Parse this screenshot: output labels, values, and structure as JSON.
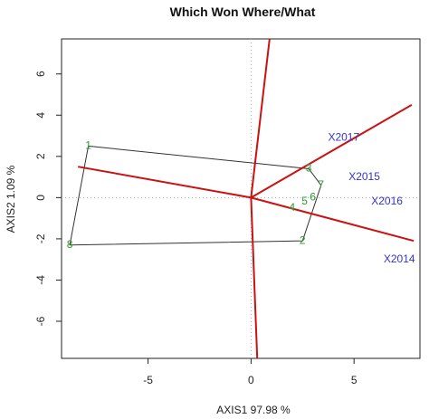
{
  "chart_data": {
    "type": "scatter",
    "title": "Which Won Where/What",
    "xlabel": "AXIS1 97.98 %",
    "ylabel": "AXIS2 1.09 %",
    "xlim": [
      -9.2,
      8.2
    ],
    "ylim": [
      -7.8,
      7.7
    ],
    "xticks": [
      -5,
      0,
      5
    ],
    "yticks": [
      6,
      4,
      2,
      0,
      -2,
      -4,
      -6
    ],
    "xtick_labels": [
      "-5",
      "0",
      "5"
    ],
    "ytick_labels": [
      "6",
      "4",
      "2",
      "0",
      "-2",
      "-4",
      "-6"
    ],
    "genotypes": [
      {
        "label": "1",
        "x": -7.9,
        "y": 2.5
      },
      {
        "label": "2",
        "x": 2.5,
        "y": -2.1
      },
      {
        "label": "3",
        "x": 2.8,
        "y": 1.4
      },
      {
        "label": "4",
        "x": 2.0,
        "y": -0.5
      },
      {
        "label": "5",
        "x": 2.6,
        "y": -0.2
      },
      {
        "label": "6",
        "x": 3.0,
        "y": 0.0
      },
      {
        "label": "7",
        "x": 3.4,
        "y": 0.6
      },
      {
        "label": "8",
        "x": -8.8,
        "y": -2.3
      }
    ],
    "environments": [
      {
        "label": "X2017",
        "x": 4.5,
        "y": 2.9
      },
      {
        "label": "X2015",
        "x": 5.5,
        "y": 1.0
      },
      {
        "label": "X2016",
        "x": 6.6,
        "y": -0.2
      },
      {
        "label": "X2014",
        "x": 7.2,
        "y": -3.0
      }
    ],
    "polygon_order": [
      0,
      2,
      6,
      1,
      7
    ],
    "sector_rays": [
      {
        "x": 0.9,
        "y": 7.7
      },
      {
        "x": -8.4,
        "y": 1.5
      },
      {
        "x": 0.3,
        "y": -7.8
      },
      {
        "x": 7.8,
        "y": 4.5
      },
      {
        "x": 7.9,
        "y": -2.1
      }
    ],
    "reference_lines": {
      "x": 0,
      "y": 0
    },
    "grid": false,
    "colors": {
      "polygon": "#333333",
      "rays": "#cc1111",
      "genotype_labels": "#2e9a2e",
      "environment_labels": "#3333cc",
      "reference_lines": "#aaaaaa"
    }
  }
}
